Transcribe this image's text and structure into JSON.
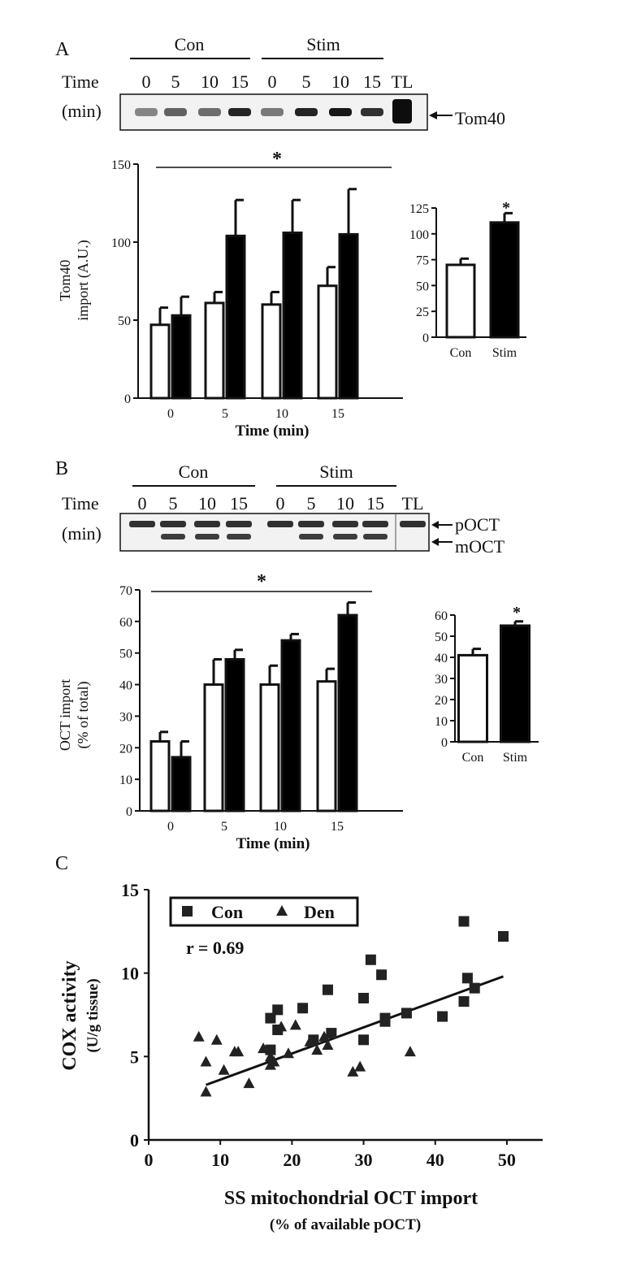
{
  "panels": {
    "A": {
      "letter": "A",
      "blot": {
        "groups": [
          "Con",
          "Stim"
        ],
        "time_label": "Time",
        "min_label": "(min)",
        "lanes": [
          "0",
          "5",
          "10",
          "15",
          "0",
          "5",
          "10",
          "15",
          "TL"
        ],
        "band_labels": [
          "Tom40"
        ]
      }
    },
    "B": {
      "letter": "B",
      "blot": {
        "groups": [
          "Con",
          "Stim"
        ],
        "time_label": "Time",
        "min_label": "(min)",
        "lanes": [
          "0",
          "5",
          "10",
          "15",
          "0",
          "5",
          "10",
          "15",
          "TL"
        ],
        "band_labels": [
          "pOCT",
          "mOCT"
        ]
      }
    },
    "C": {
      "letter": "C"
    }
  },
  "chart_data": [
    {
      "id": "A-main",
      "type": "bar",
      "ylabel_lines": [
        "Tom40",
        "import (A.U.)"
      ],
      "xlabel": "Time (min)",
      "categories": [
        "0",
        "5",
        "10",
        "15"
      ],
      "ylim": [
        0,
        150
      ],
      "yticks": [
        0,
        50,
        100,
        150
      ],
      "series": [
        {
          "name": "Con",
          "fill": "#ffffff",
          "values": [
            47,
            61,
            60,
            72
          ],
          "errors": [
            11,
            7,
            8,
            12
          ]
        },
        {
          "name": "Stim",
          "fill": "#000000",
          "values": [
            53,
            104,
            106,
            105
          ],
          "errors": [
            12,
            23,
            21,
            29
          ]
        }
      ],
      "significance": "*"
    },
    {
      "id": "A-inset",
      "type": "bar",
      "categories": [
        "Con",
        "Stim"
      ],
      "ylim": [
        0,
        125
      ],
      "yticks": [
        0,
        25,
        50,
        75,
        100,
        125
      ],
      "series": [
        {
          "name": "Import",
          "fills": [
            "#ffffff",
            "#000000"
          ],
          "values": [
            70,
            111
          ],
          "errors": [
            6,
            9
          ]
        }
      ],
      "significance": "*"
    },
    {
      "id": "B-main",
      "type": "bar",
      "ylabel_lines": [
        "OCT import",
        "(% of total)"
      ],
      "xlabel": "Time (min)",
      "categories": [
        "0",
        "5",
        "10",
        "15"
      ],
      "ylim": [
        0,
        70
      ],
      "yticks": [
        0,
        10,
        20,
        30,
        40,
        50,
        60,
        70
      ],
      "series": [
        {
          "name": "Con",
          "fill": "#ffffff",
          "values": [
            22,
            40,
            40,
            41
          ],
          "errors": [
            3,
            8,
            6,
            4
          ]
        },
        {
          "name": "Stim",
          "fill": "#000000",
          "values": [
            17,
            48,
            54,
            62
          ],
          "errors": [
            5,
            3,
            2,
            4
          ]
        }
      ],
      "significance": "*"
    },
    {
      "id": "B-inset",
      "type": "bar",
      "categories": [
        "Con",
        "Stim"
      ],
      "ylim": [
        0,
        60
      ],
      "yticks": [
        0,
        10,
        20,
        30,
        40,
        50,
        60
      ],
      "series": [
        {
          "name": "Import",
          "fills": [
            "#ffffff",
            "#000000"
          ],
          "values": [
            41,
            55
          ],
          "errors": [
            3,
            2
          ]
        }
      ],
      "significance": "*"
    },
    {
      "id": "C-scatter",
      "type": "scatter",
      "xlabel": "SS mitochondrial OCT import",
      "xlabel_sub": "(% of available pOCT)",
      "ylabel": "COX activity",
      "ylabel_sub": "(U/g tissue)",
      "xlim": [
        0,
        55
      ],
      "ylim": [
        0,
        15
      ],
      "xticks": [
        0,
        10,
        20,
        30,
        40,
        50
      ],
      "yticks": [
        0,
        5,
        10,
        15
      ],
      "annotation": "r = 0.69",
      "series": [
        {
          "name": "Con",
          "marker": "square",
          "points": [
            [
              17,
              7.3
            ],
            [
              18,
              7.8
            ],
            [
              18,
              6.6
            ],
            [
              17,
              5.4
            ],
            [
              21.5,
              7.9
            ],
            [
              23,
              6.0
            ],
            [
              25,
              9.0
            ],
            [
              25.5,
              6.4
            ],
            [
              30,
              8.5
            ],
            [
              31,
              10.8
            ],
            [
              32.5,
              9.9
            ],
            [
              33,
              7.1
            ],
            [
              33,
              7.3
            ],
            [
              30,
              6.0
            ],
            [
              36,
              7.6
            ],
            [
              41,
              7.4
            ],
            [
              44,
              13.1
            ],
            [
              44.5,
              9.7
            ],
            [
              44,
              8.3
            ],
            [
              45.5,
              9.1
            ],
            [
              49.5,
              12.2
            ]
          ]
        },
        {
          "name": "Den",
          "marker": "triangle",
          "points": [
            [
              7,
              6.2
            ],
            [
              8,
              4.7
            ],
            [
              8,
              2.9
            ],
            [
              9.5,
              6.0
            ],
            [
              10.5,
              4.2
            ],
            [
              12,
              5.3
            ],
            [
              12.5,
              5.3
            ],
            [
              14,
              3.4
            ],
            [
              16,
              5.5
            ],
            [
              17,
              5.0
            ],
            [
              17,
              4.5
            ],
            [
              17.5,
              4.7
            ],
            [
              18.5,
              6.8
            ],
            [
              19.5,
              5.2
            ],
            [
              20.5,
              6.9
            ],
            [
              22.5,
              5.9
            ],
            [
              23.5,
              5.4
            ],
            [
              24.5,
              6.2
            ],
            [
              25,
              5.7
            ],
            [
              28.5,
              4.1
            ],
            [
              29.5,
              4.4
            ],
            [
              36.5,
              5.3
            ]
          ]
        }
      ],
      "fit_line": [
        [
          8,
          3.3
        ],
        [
          49.5,
          9.8
        ]
      ]
    }
  ]
}
